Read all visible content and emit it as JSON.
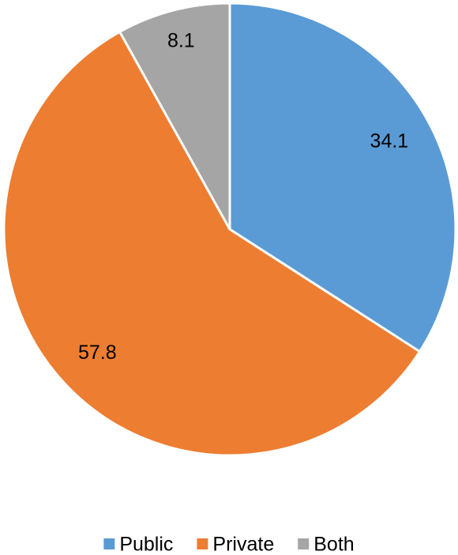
{
  "chart_data": {
    "type": "pie",
    "categories": [
      "Public",
      "Private",
      "Both"
    ],
    "values": [
      34.1,
      57.8,
      8.1
    ],
    "colors": [
      "#5b9bd5",
      "#ed7d31",
      "#a5a5a5"
    ],
    "legend": "bottom"
  }
}
